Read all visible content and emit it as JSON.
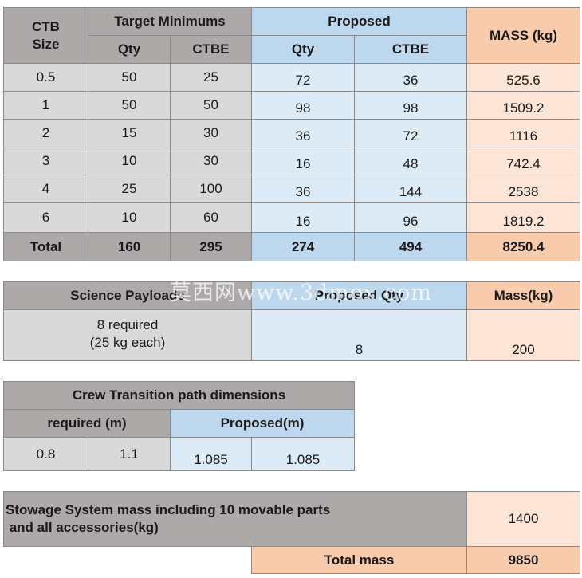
{
  "ctb_table": {
    "header": {
      "size": "CTB\nSize",
      "target_minimums": "Target Minimums",
      "proposed": "Proposed",
      "mass": "MASS (kg)",
      "qty": "Qty",
      "ctbe": "CTBE"
    },
    "rows": [
      {
        "size": "0.5",
        "target_qty": "50",
        "target_ctbe": "25",
        "prop_qty": "72",
        "prop_ctbe": "36",
        "mass": "525.6"
      },
      {
        "size": "1",
        "target_qty": "50",
        "target_ctbe": "50",
        "prop_qty": "98",
        "prop_ctbe": "98",
        "mass": "1509.2"
      },
      {
        "size": "2",
        "target_qty": "15",
        "target_ctbe": "30",
        "prop_qty": "36",
        "prop_ctbe": "72",
        "mass": "1116"
      },
      {
        "size": "3",
        "target_qty": "10",
        "target_ctbe": "30",
        "prop_qty": "16",
        "prop_ctbe": "48",
        "mass": "742.4"
      },
      {
        "size": "4",
        "target_qty": "25",
        "target_ctbe": "100",
        "prop_qty": "36",
        "prop_ctbe": "144",
        "mass": "2538"
      },
      {
        "size": "6",
        "target_qty": "10",
        "target_ctbe": "60",
        "prop_qty": "16",
        "prop_ctbe": "96",
        "mass": "1819.2"
      }
    ],
    "total": {
      "label": "Total",
      "target_qty": "160",
      "target_ctbe": "295",
      "prop_qty": "274",
      "prop_ctbe": "494",
      "mass": "8250.4"
    }
  },
  "science_table": {
    "header": {
      "payloads": "Science Payloads",
      "proposed_qty": "Proposed Qty",
      "mass": "Mass(kg)"
    },
    "row": {
      "required": "8 required\n(25 kg each)",
      "proposed_qty": "8",
      "mass": "200"
    }
  },
  "crew_table": {
    "title": "Crew Transition path dimensions",
    "required_header": "required (m)",
    "proposed_header": "Proposed(m)",
    "values": {
      "req_1": "0.8",
      "req_2": "1.1",
      "prop_1": "1.085",
      "prop_2": "1.085"
    }
  },
  "stowage_table": {
    "label": "Stowage System mass including 10 movable parts\n and all accessories(kg)",
    "value": "1400",
    "total_label": "Total mass",
    "total_value": "9850"
  },
  "watermark": "莫西网www.3dmox.com"
}
